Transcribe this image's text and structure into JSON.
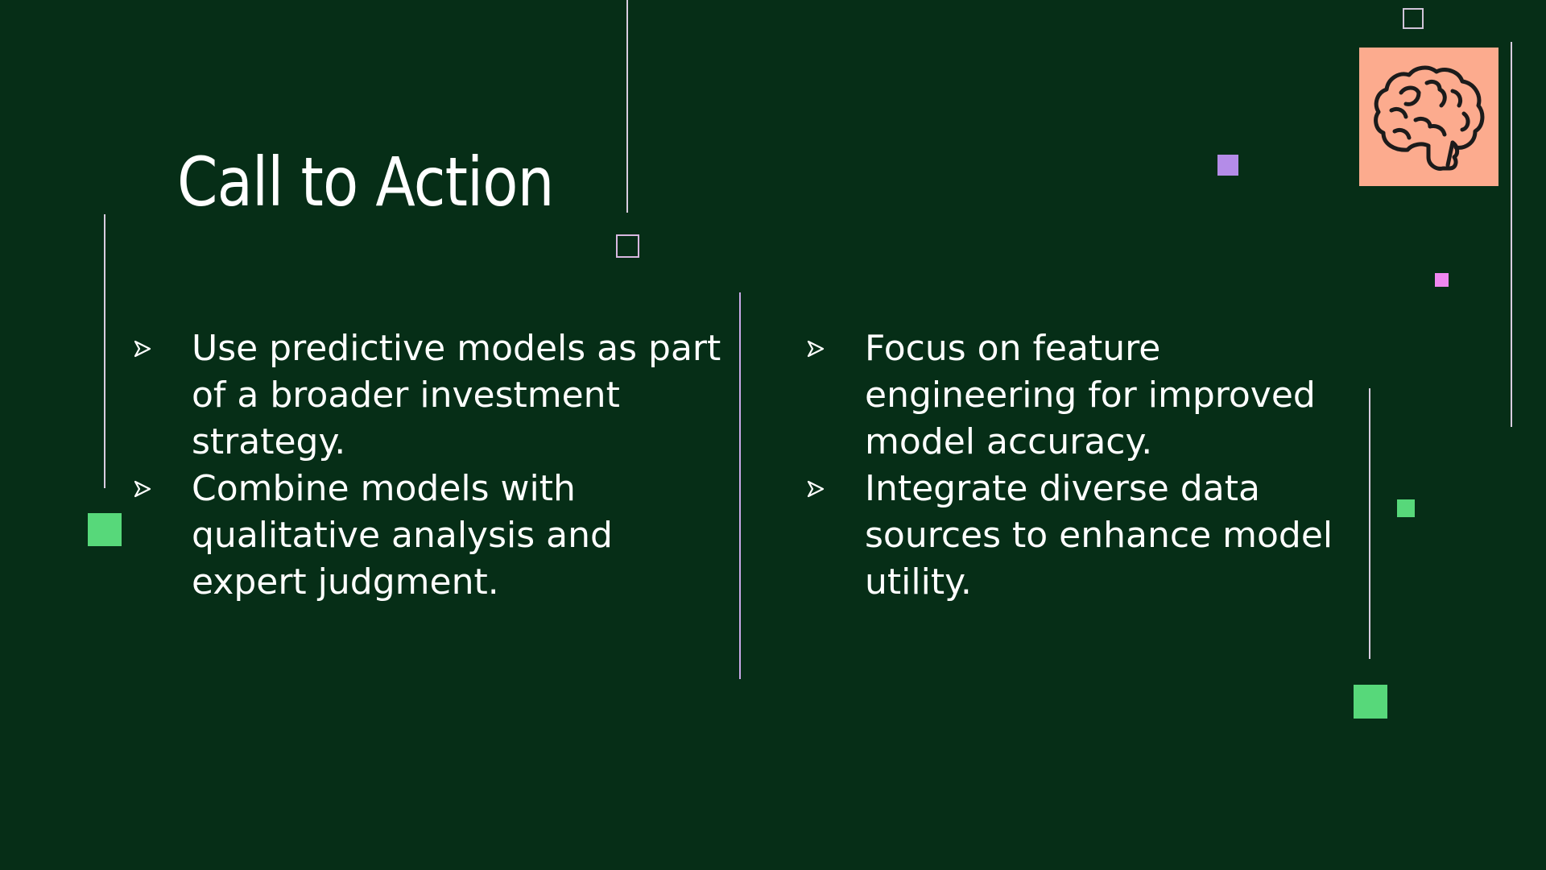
{
  "slide": {
    "title": "Call to Action",
    "left_bullets": [
      "Use predictive models as part of a broader investment strategy.",
      "Combine models with qualitative analysis and expert judgment."
    ],
    "right_bullets": [
      "Focus on feature engineering for improved model accuracy.",
      "Integrate diverse data sources to enhance model utility."
    ]
  },
  "icons": {
    "bullet": "arrowhead-bullet-icon",
    "feature": "brain-icon"
  },
  "colors": {
    "background": "#062e17",
    "text": "#ffffff",
    "accent_green": "#57d87a",
    "accent_purple": "#b48ce8",
    "accent_pink": "#ef87f0",
    "icon_tile": "#fcab8e",
    "divider": "#c9a9e8"
  }
}
